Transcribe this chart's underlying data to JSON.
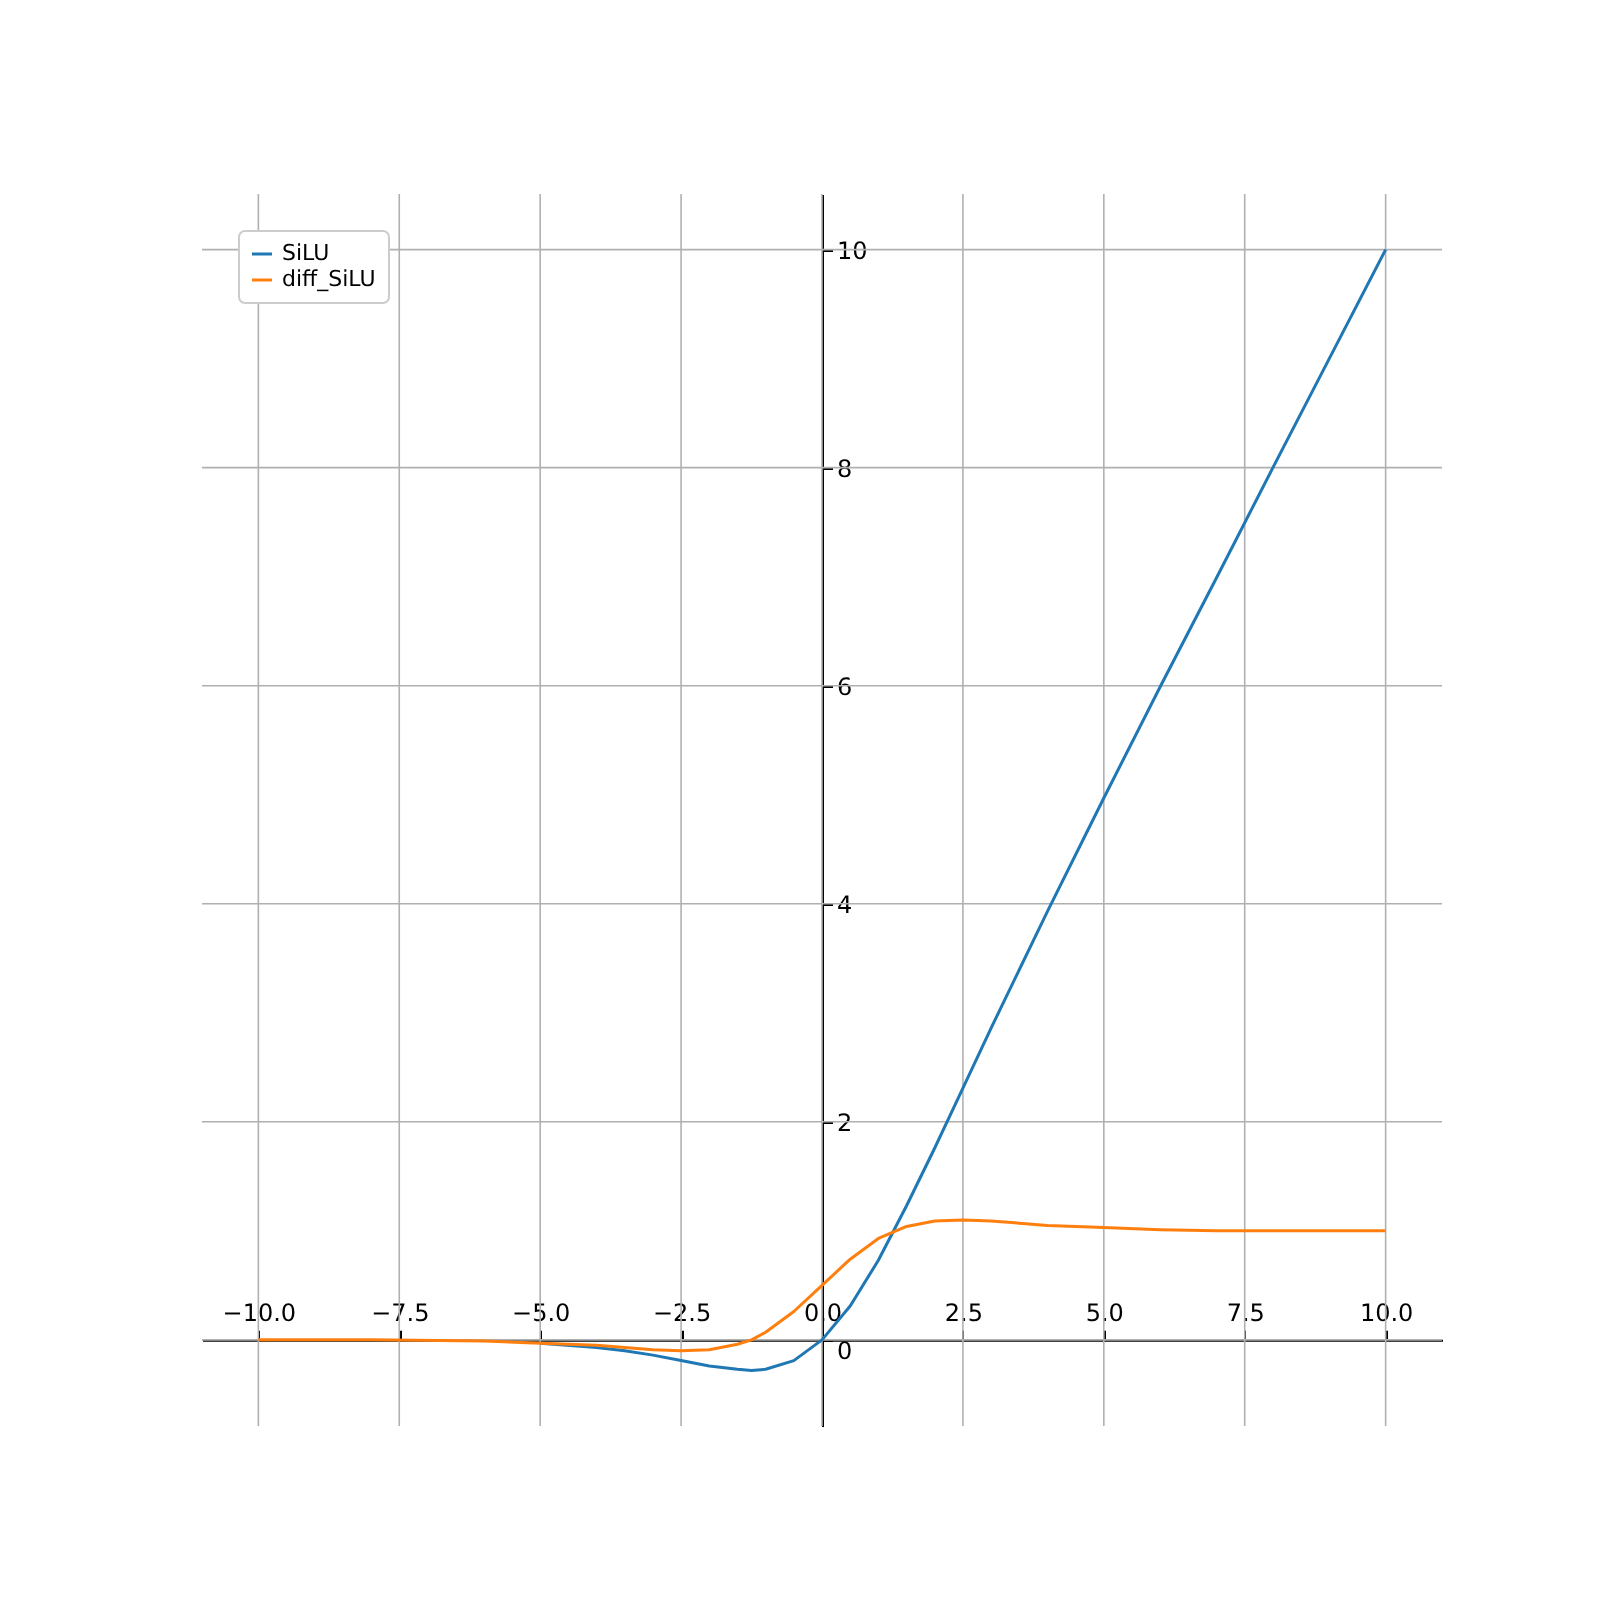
{
  "chart_data": {
    "type": "line",
    "x": [
      -10,
      -8,
      -6,
      -5,
      -4,
      -3.5,
      -3,
      -2.5,
      -2,
      -1.5,
      -1.25,
      -1,
      -0.5,
      0,
      0.5,
      1,
      1.5,
      2,
      2.5,
      3,
      4,
      5,
      6,
      7,
      8,
      9,
      10
    ],
    "series": [
      {
        "name": "SiLU",
        "color": "#1f77b4",
        "values": [
          null,
          null,
          null,
          -0.03,
          -0.07,
          -0.1,
          -0.14,
          -0.19,
          -0.24,
          -0.27,
          -0.28,
          -0.27,
          -0.19,
          0.0,
          0.31,
          0.73,
          1.23,
          1.76,
          2.31,
          2.86,
          3.93,
          4.97,
          5.99,
          6.99,
          8.0,
          9.0,
          10.0
        ]
      },
      {
        "name": "diff_SiLU",
        "color": "#ff7f0e",
        "values": [
          0.0,
          0.0,
          -0.01,
          -0.03,
          -0.05,
          -0.07,
          -0.09,
          -0.1,
          -0.09,
          -0.04,
          0.0,
          0.07,
          0.26,
          0.5,
          0.74,
          0.93,
          1.04,
          1.09,
          1.1,
          1.09,
          1.05,
          1.03,
          1.01,
          1.0,
          1.0,
          1.0,
          1.0
        ]
      }
    ],
    "xlim": [
      -11,
      11
    ],
    "ylim": [
      -0.79,
      10.51
    ],
    "xticks": [
      {
        "value": -10,
        "label": "−10.0"
      },
      {
        "value": -7.5,
        "label": "−7.5"
      },
      {
        "value": -5,
        "label": "−5.0"
      },
      {
        "value": -2.5,
        "label": "−2.5"
      },
      {
        "value": 0,
        "label": "0.0"
      },
      {
        "value": 2.5,
        "label": "2.5"
      },
      {
        "value": 5,
        "label": "5.0"
      },
      {
        "value": 7.5,
        "label": "7.5"
      },
      {
        "value": 10,
        "label": "10.0"
      }
    ],
    "yticks": [
      0,
      2,
      4,
      6,
      8,
      10
    ],
    "grid": true,
    "legend": "top left",
    "marker": "none",
    "line_style": "solid"
  }
}
